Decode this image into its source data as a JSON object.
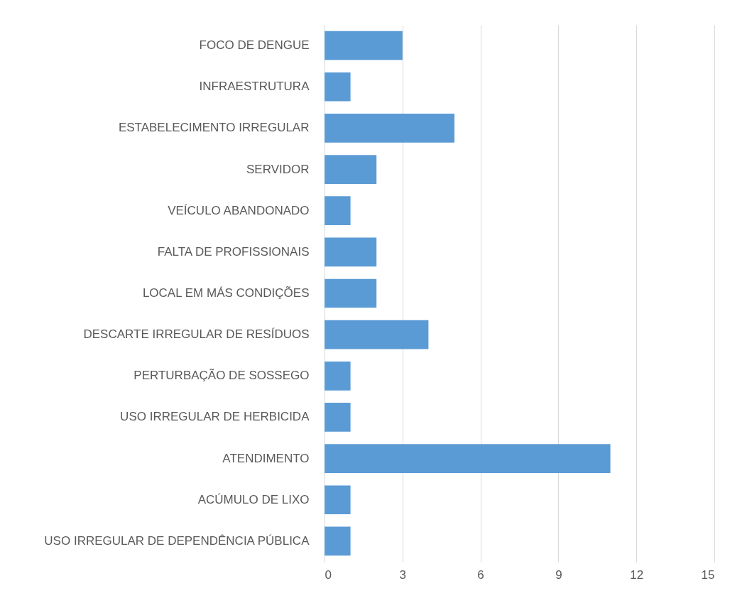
{
  "chart_data": {
    "type": "bar",
    "orientation": "horizontal",
    "categories": [
      "FOCO DE DENGUE",
      "INFRAESTRUTURA",
      "ESTABELECIMENTO IRREGULAR",
      "SERVIDOR",
      "VEÍCULO ABANDONADO",
      "FALTA DE PROFISSIONAIS",
      "LOCAL EM MÁS CONDIÇÕES",
      "DESCARTE IRREGULAR DE RESÍDUOS",
      "PERTURBAÇÃO DE SOSSEGO",
      "USO IRREGULAR DE HERBICIDA",
      "ATENDIMENTO",
      "ACÚMULO DE LIXO",
      "USO IRREGULAR DE DEPENDÊNCIA PÚBLICA"
    ],
    "values": [
      3,
      1,
      5,
      2,
      1,
      2,
      2,
      4,
      1,
      1,
      11,
      1,
      1
    ],
    "color": "#5b9bd5",
    "xlim": [
      0,
      15
    ],
    "xticks": [
      0,
      3,
      6,
      9,
      12,
      15
    ],
    "grid": "x"
  }
}
